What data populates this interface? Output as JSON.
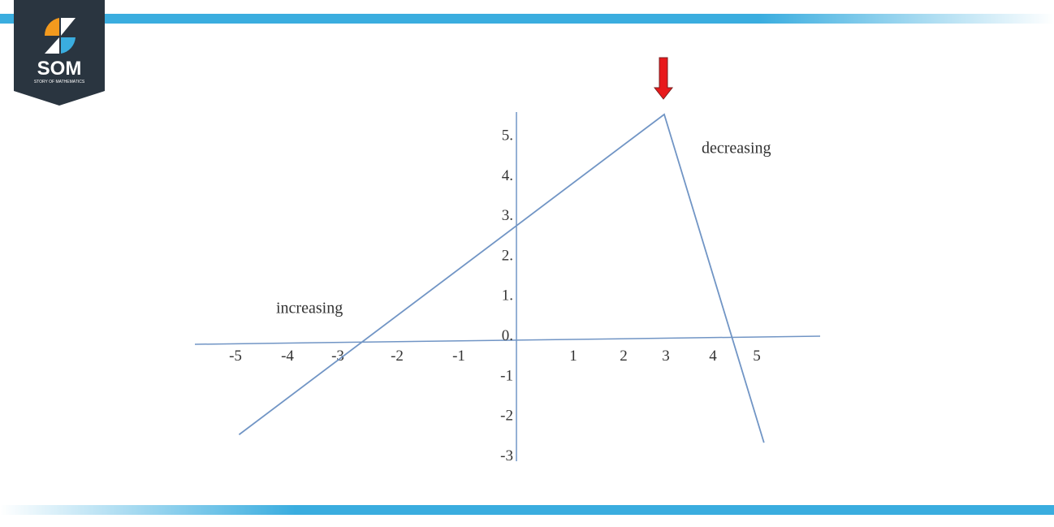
{
  "logo": {
    "text": "SOM",
    "subtext": "STORY OF MATHEMATICS"
  },
  "colors": {
    "accent_bar": "#3aaddf",
    "line": "#7195c5",
    "arrow": "#e8191b",
    "logo_bg": "#2a3540",
    "logo_orange": "#f39a1e",
    "logo_blue": "#3aaddf"
  },
  "chart_data": {
    "type": "line",
    "title": "",
    "xlabel": "",
    "ylabel": "",
    "x_ticks": [
      "-5",
      "-4",
      "-3",
      "-2",
      "-1",
      "1",
      "2",
      "3",
      "4",
      "5"
    ],
    "y_ticks": [
      "5.",
      "4.",
      "3.",
      "2.",
      "1.",
      "0.",
      "-1",
      "-2",
      "-3"
    ],
    "xlim": [
      -5,
      5.5
    ],
    "ylim": [
      -3,
      5.5
    ],
    "grid": false,
    "series": [
      {
        "points": [
          [
            -4.9,
            -2.5
          ],
          [
            3,
            5.5
          ],
          [
            5.2,
            -2.7
          ]
        ]
      }
    ],
    "annotations": [
      {
        "text": "increasing",
        "x": -4,
        "y": 0.7
      },
      {
        "text": "decreasing",
        "x": 4,
        "y": 4.7
      }
    ],
    "marker": {
      "type": "arrow-down",
      "x": 3
    }
  }
}
